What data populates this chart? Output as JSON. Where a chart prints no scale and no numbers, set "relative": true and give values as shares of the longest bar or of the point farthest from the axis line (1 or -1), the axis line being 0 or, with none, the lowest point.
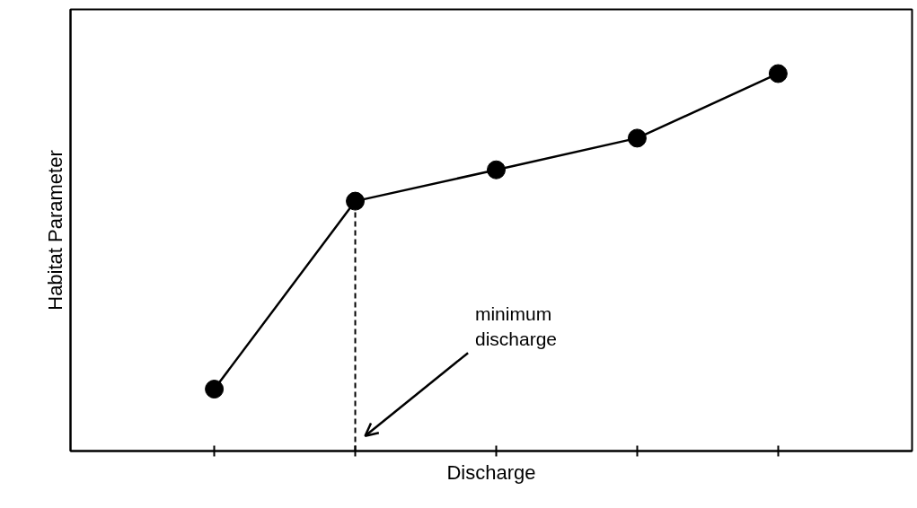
{
  "chart_data": {
    "type": "line",
    "relative": true,
    "xlabel": "Discharge",
    "ylabel": "Habitat Parameter",
    "categories": [
      null,
      null,
      null,
      null,
      null
    ],
    "values": [
      0.164,
      0.662,
      0.745,
      0.829,
      1.0
    ],
    "color": "#000000",
    "marker": "circle",
    "line_style": "solid",
    "grid": false,
    "annotations": [
      "minimum\ndischarge"
    ]
  }
}
